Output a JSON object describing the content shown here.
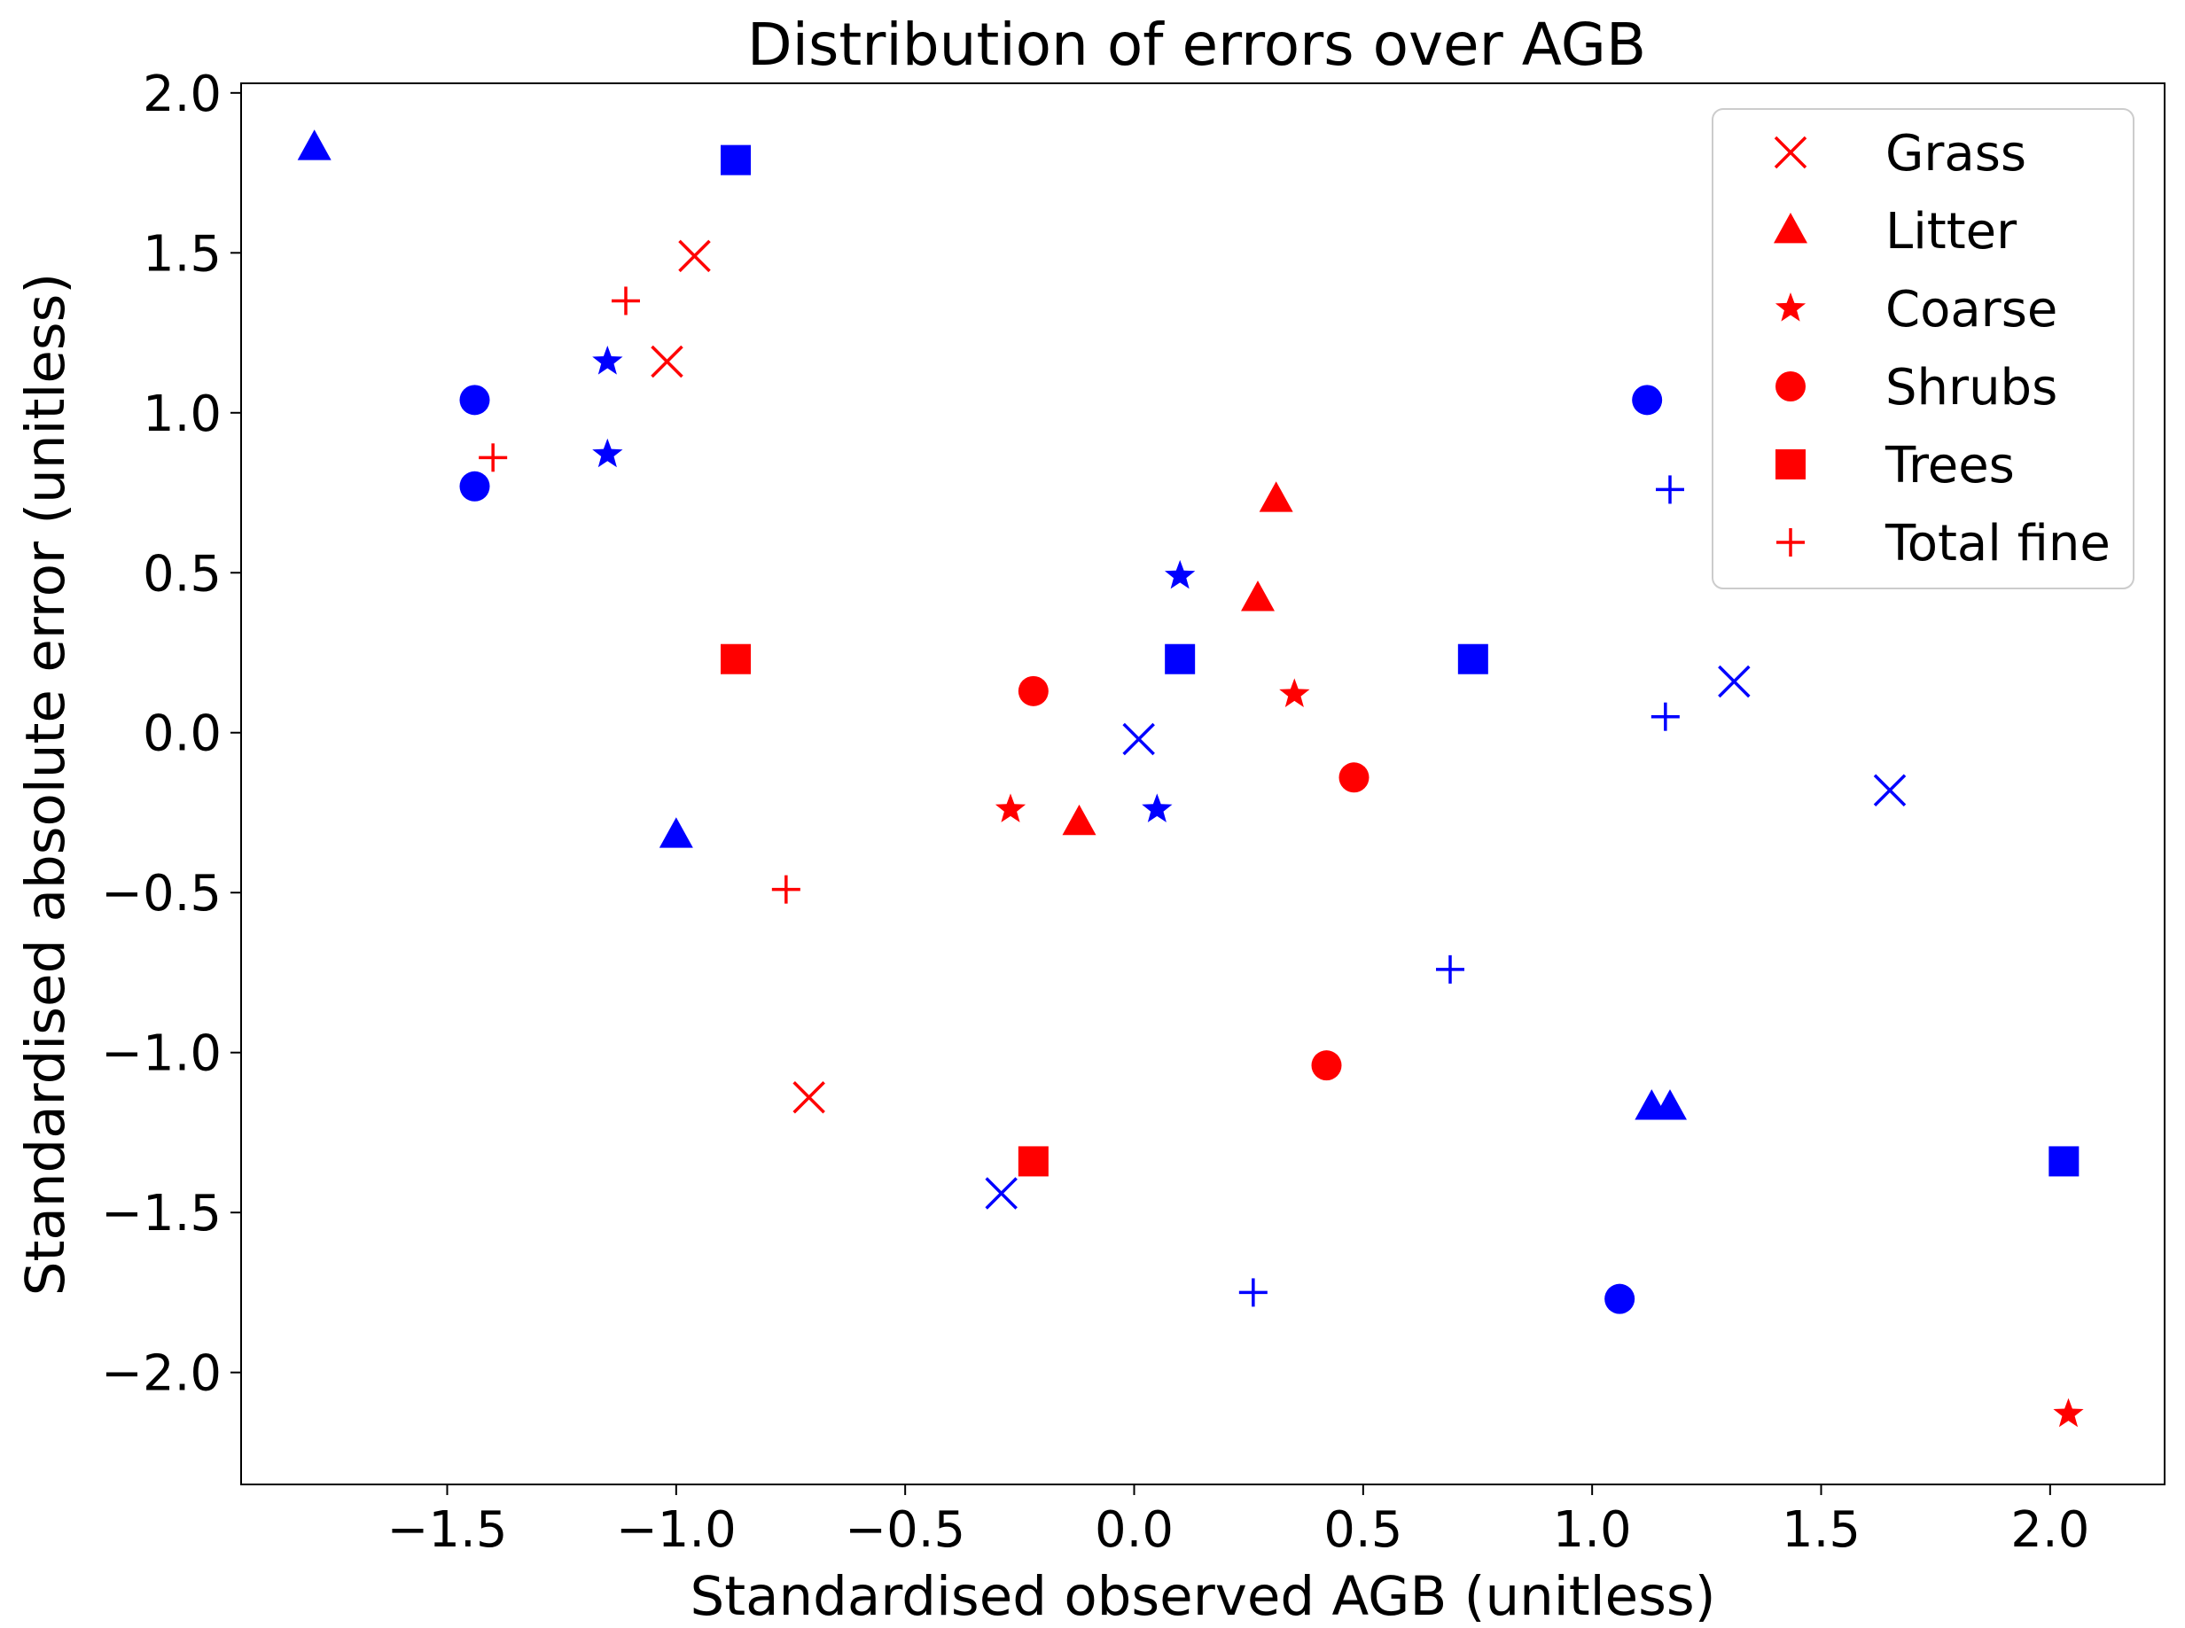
{
  "chart_data": {
    "type": "scatter",
    "title": "Distribution of errors over AGB",
    "xlabel": "Standardised observed AGB (unitless)",
    "ylabel": "Standardised absolute error (unitless)",
    "xlim": [
      -1.95,
      2.25
    ],
    "ylim": [
      -2.35,
      2.03
    ],
    "xticks": [
      -1.5,
      -1.0,
      -0.5,
      0.0,
      0.5,
      1.0,
      1.5,
      2.0
    ],
    "xtick_labels": [
      "−1.5",
      "−1.0",
      "−0.5",
      "0.0",
      "0.5",
      "1.0",
      "1.5",
      "2.0"
    ],
    "yticks": [
      2.0,
      1.5,
      1.0,
      0.5,
      0.0,
      -0.5,
      -1.0,
      -1.5,
      -2.0
    ],
    "ytick_labels": [
      "2.0",
      "1.5",
      "1.0",
      "0.5",
      "0.0",
      "−0.5",
      "−1.0",
      "−1.5",
      "−2.0"
    ],
    "grid": false,
    "legend_position": "top-right",
    "colors": {
      "red": "#ff0000",
      "blue": "#0000ff"
    },
    "series": [
      {
        "name": "Grass",
        "marker": "x",
        "red_points": [
          [
            -0.96,
            1.49
          ],
          [
            -1.02,
            1.16
          ],
          [
            -0.71,
            -1.14
          ]
        ],
        "blue_points": [
          [
            0.01,
            -0.02
          ],
          [
            -0.29,
            -1.44
          ],
          [
            1.31,
            0.16
          ],
          [
            1.65,
            -0.18
          ]
        ]
      },
      {
        "name": "Litter",
        "marker": "triangle",
        "red_points": [
          [
            0.31,
            0.73
          ],
          [
            0.27,
            0.42
          ],
          [
            -0.12,
            -0.28
          ]
        ],
        "blue_points": [
          [
            -1.79,
            1.83
          ],
          [
            -1.0,
            -0.32
          ],
          [
            1.13,
            -1.17
          ],
          [
            1.17,
            -1.17
          ]
        ]
      },
      {
        "name": "Coarse",
        "marker": "star",
        "red_points": [
          [
            0.35,
            0.12
          ],
          [
            -0.27,
            -0.24
          ],
          [
            2.04,
            -2.13
          ]
        ],
        "blue_points": [
          [
            -1.15,
            1.16
          ],
          [
            -1.15,
            0.87
          ],
          [
            0.1,
            0.49
          ],
          [
            0.05,
            -0.24
          ]
        ]
      },
      {
        "name": "Shrubs",
        "marker": "circle",
        "red_points": [
          [
            -0.22,
            0.13
          ],
          [
            0.48,
            -0.14
          ],
          [
            0.42,
            -1.04
          ]
        ],
        "blue_points": [
          [
            -1.44,
            1.04
          ],
          [
            -1.44,
            0.77
          ],
          [
            1.12,
            1.04
          ],
          [
            1.06,
            -1.77
          ]
        ]
      },
      {
        "name": "Trees",
        "marker": "square",
        "red_points": [
          [
            -0.87,
            0.23
          ],
          [
            -0.22,
            -1.34
          ]
        ],
        "blue_points": [
          [
            -0.87,
            1.79
          ],
          [
            0.1,
            0.23
          ],
          [
            0.74,
            0.23
          ],
          [
            2.03,
            -1.34
          ]
        ]
      },
      {
        "name": "Total fine",
        "marker": "plus",
        "red_points": [
          [
            -1.11,
            1.35
          ],
          [
            -1.4,
            0.86
          ],
          [
            -0.76,
            -0.49
          ]
        ],
        "blue_points": [
          [
            1.17,
            0.76
          ],
          [
            1.16,
            0.05
          ],
          [
            0.69,
            -0.74
          ],
          [
            0.26,
            -1.75
          ]
        ]
      }
    ]
  }
}
